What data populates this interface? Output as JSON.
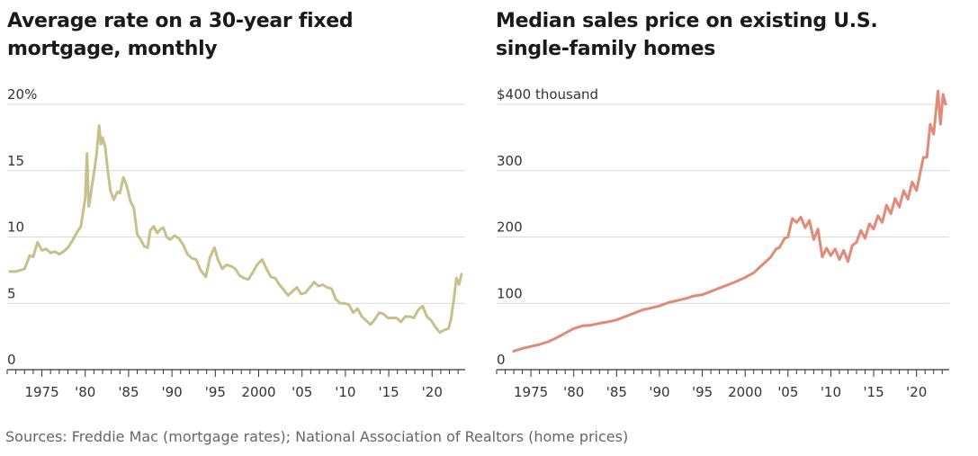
{
  "chart_data": [
    {
      "type": "line",
      "title": "Average rate on a 30-year fixed mortgage, monthly",
      "xlabel": "",
      "ylabel": "",
      "unit_label": "20%",
      "y_ticks": [
        0,
        5,
        10,
        15,
        20
      ],
      "y_tick_labels": [
        "0",
        "5",
        "10",
        "15",
        "20%"
      ],
      "ylim": [
        0,
        20
      ],
      "xlim": [
        1971,
        2023.5
      ],
      "x_ticks": [
        1975,
        1980,
        1985,
        1990,
        1995,
        2000,
        2005,
        2010,
        2015,
        2020
      ],
      "x_tick_labels": [
        "1975",
        "'80",
        "'85",
        "'90",
        "'95",
        "2000",
        "'05",
        "'10",
        "'15",
        "'20"
      ],
      "grid": true,
      "color": "#c8c08c",
      "series": [
        {
          "x": [
            1971.3,
            1972.0,
            1972.5,
            1973.0,
            1973.6,
            1974.0,
            1974.5,
            1975.0,
            1975.5,
            1976.0,
            1976.5,
            1977.0,
            1977.5,
            1978.0,
            1978.5,
            1979.0,
            1979.5,
            1980.0,
            1980.2,
            1980.4,
            1980.6,
            1980.8,
            1981.0,
            1981.3,
            1981.6,
            1981.8,
            1982.0,
            1982.3,
            1982.6,
            1982.9,
            1983.3,
            1983.7,
            1984.0,
            1984.4,
            1984.8,
            1985.2,
            1985.6,
            1986.0,
            1986.4,
            1986.8,
            1987.2,
            1987.5,
            1987.9,
            1988.3,
            1988.7,
            1989.0,
            1989.4,
            1989.8,
            1990.3,
            1990.8,
            1991.3,
            1991.8,
            1992.3,
            1992.8,
            1993.3,
            1993.9,
            1994.4,
            1994.9,
            1995.3,
            1995.8,
            1996.3,
            1996.8,
            1997.3,
            1997.8,
            1998.3,
            1998.8,
            1999.3,
            1999.8,
            2000.4,
            2000.9,
            2001.4,
            2001.9,
            2002.4,
            2002.9,
            2003.4,
            2003.9,
            2004.4,
            2004.9,
            2005.4,
            2005.9,
            2006.4,
            2006.9,
            2007.4,
            2007.9,
            2008.4,
            2008.9,
            2009.4,
            2009.9,
            2010.4,
            2010.9,
            2011.4,
            2011.9,
            2012.4,
            2012.9,
            2013.4,
            2013.9,
            2014.4,
            2014.9,
            2015.4,
            2015.9,
            2016.4,
            2016.9,
            2017.4,
            2017.9,
            2018.4,
            2018.9,
            2019.4,
            2019.9,
            2020.4,
            2020.9,
            2021.4,
            2021.9,
            2022.2,
            2022.5,
            2022.8,
            2023.1,
            2023.4
          ],
          "y": [
            7.4,
            7.4,
            7.5,
            7.6,
            8.6,
            8.5,
            9.6,
            9.0,
            9.1,
            8.8,
            8.9,
            8.7,
            8.9,
            9.2,
            9.7,
            10.3,
            10.8,
            12.9,
            16.3,
            12.3,
            13.0,
            14.0,
            14.8,
            16.2,
            18.4,
            17.0,
            17.5,
            16.8,
            15.0,
            13.5,
            12.8,
            13.4,
            13.3,
            14.5,
            13.8,
            12.7,
            12.2,
            10.2,
            9.8,
            9.3,
            9.2,
            10.5,
            10.8,
            10.3,
            10.6,
            10.7,
            10.0,
            9.8,
            10.1,
            9.9,
            9.4,
            8.7,
            8.4,
            8.3,
            7.5,
            7.0,
            8.5,
            9.2,
            8.3,
            7.6,
            7.9,
            7.8,
            7.6,
            7.1,
            6.9,
            6.8,
            7.3,
            7.9,
            8.3,
            7.6,
            7.0,
            6.9,
            6.4,
            6.0,
            5.6,
            5.9,
            6.2,
            5.7,
            5.8,
            6.2,
            6.6,
            6.3,
            6.4,
            6.2,
            6.1,
            5.3,
            5.0,
            5.0,
            4.9,
            4.3,
            4.6,
            4.0,
            3.7,
            3.4,
            3.8,
            4.3,
            4.2,
            3.9,
            3.9,
            3.9,
            3.6,
            4.0,
            4.0,
            3.9,
            4.5,
            4.8,
            4.0,
            3.7,
            3.2,
            2.8,
            3.0,
            3.1,
            3.9,
            5.3,
            6.9,
            6.4,
            7.2
          ]
        }
      ]
    },
    {
      "type": "line",
      "title": "Median sales price on existing U.S. single-family homes",
      "xlabel": "",
      "ylabel": "",
      "unit_label": "$400 thousand",
      "y_ticks": [
        0,
        100,
        200,
        300,
        400
      ],
      "y_tick_labels": [
        "0",
        "100",
        "200",
        "300",
        "$400 thousand"
      ],
      "ylim": [
        0,
        400
      ],
      "xlim": [
        1971,
        2023.5
      ],
      "x_ticks": [
        1975,
        1980,
        1985,
        1990,
        1995,
        2000,
        2005,
        2010,
        2015,
        2020
      ],
      "x_tick_labels": [
        "1975",
        "'80",
        "'85",
        "'90",
        "'95",
        "2000",
        "'05",
        "'10",
        "'15",
        "'20"
      ],
      "grid": true,
      "color": "#e08a78",
      "series": [
        {
          "x": [
            1973.0,
            1974.0,
            1975.0,
            1976.0,
            1977.0,
            1978.0,
            1979.0,
            1980.0,
            1981.0,
            1982.0,
            1983.0,
            1984.0,
            1985.0,
            1986.0,
            1987.0,
            1988.0,
            1989.0,
            1990.0,
            1991.0,
            1992.0,
            1993.0,
            1994.0,
            1995.0,
            1996.0,
            1997.0,
            1998.0,
            1999.0,
            2000.0,
            2001.0,
            2002.0,
            2003.0,
            2003.6,
            2004.0,
            2004.6,
            2005.0,
            2005.5,
            2006.0,
            2006.5,
            2007.0,
            2007.5,
            2008.0,
            2008.5,
            2009.0,
            2009.5,
            2010.0,
            2010.5,
            2011.0,
            2011.5,
            2012.0,
            2012.5,
            2013.0,
            2013.5,
            2014.0,
            2014.5,
            2015.0,
            2015.5,
            2016.0,
            2016.5,
            2017.0,
            2017.5,
            2018.0,
            2018.5,
            2019.0,
            2019.5,
            2020.0,
            2020.4,
            2020.8,
            2021.2,
            2021.6,
            2022.0,
            2022.5,
            2022.8,
            2023.1,
            2023.4
          ],
          "y": [
            28,
            32,
            35,
            38,
            42,
            48,
            55,
            62,
            66,
            67,
            70,
            72,
            75,
            80,
            85,
            90,
            93,
            96,
            101,
            104,
            107,
            111,
            113,
            118,
            123,
            128,
            133,
            139,
            146,
            158,
            170,
            182,
            184,
            198,
            200,
            228,
            222,
            230,
            214,
            225,
            196,
            212,
            170,
            183,
            172,
            182,
            166,
            180,
            163,
            187,
            192,
            210,
            198,
            220,
            212,
            232,
            222,
            248,
            235,
            258,
            245,
            270,
            257,
            283,
            270,
            295,
            320,
            320,
            370,
            355,
            420,
            370,
            415,
            400
          ]
        }
      ]
    }
  ],
  "source": "Sources: Freddie Mac (mortgage rates); National Association of Realtors (home prices)"
}
